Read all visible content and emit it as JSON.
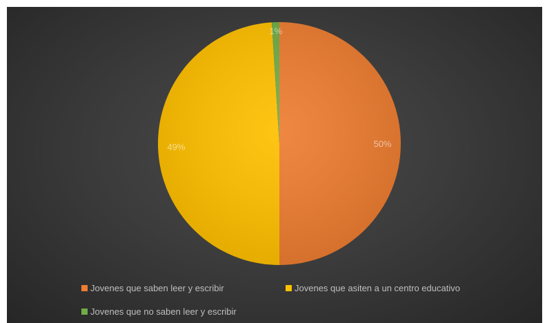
{
  "chart_data": {
    "type": "pie",
    "title": "",
    "categories": [
      "Jovenes que saben leer y escribir",
      "Jovenes que asiten a un centro educativo",
      "Jovenes que no saben leer y escribir"
    ],
    "values": [
      50,
      49,
      1
    ],
    "labels": [
      "50%",
      "49%",
      "1%"
    ],
    "colors": [
      "#ed7d31",
      "#ffc000",
      "#70ad47"
    ],
    "legend_position": "bottom",
    "background": "#404040"
  }
}
